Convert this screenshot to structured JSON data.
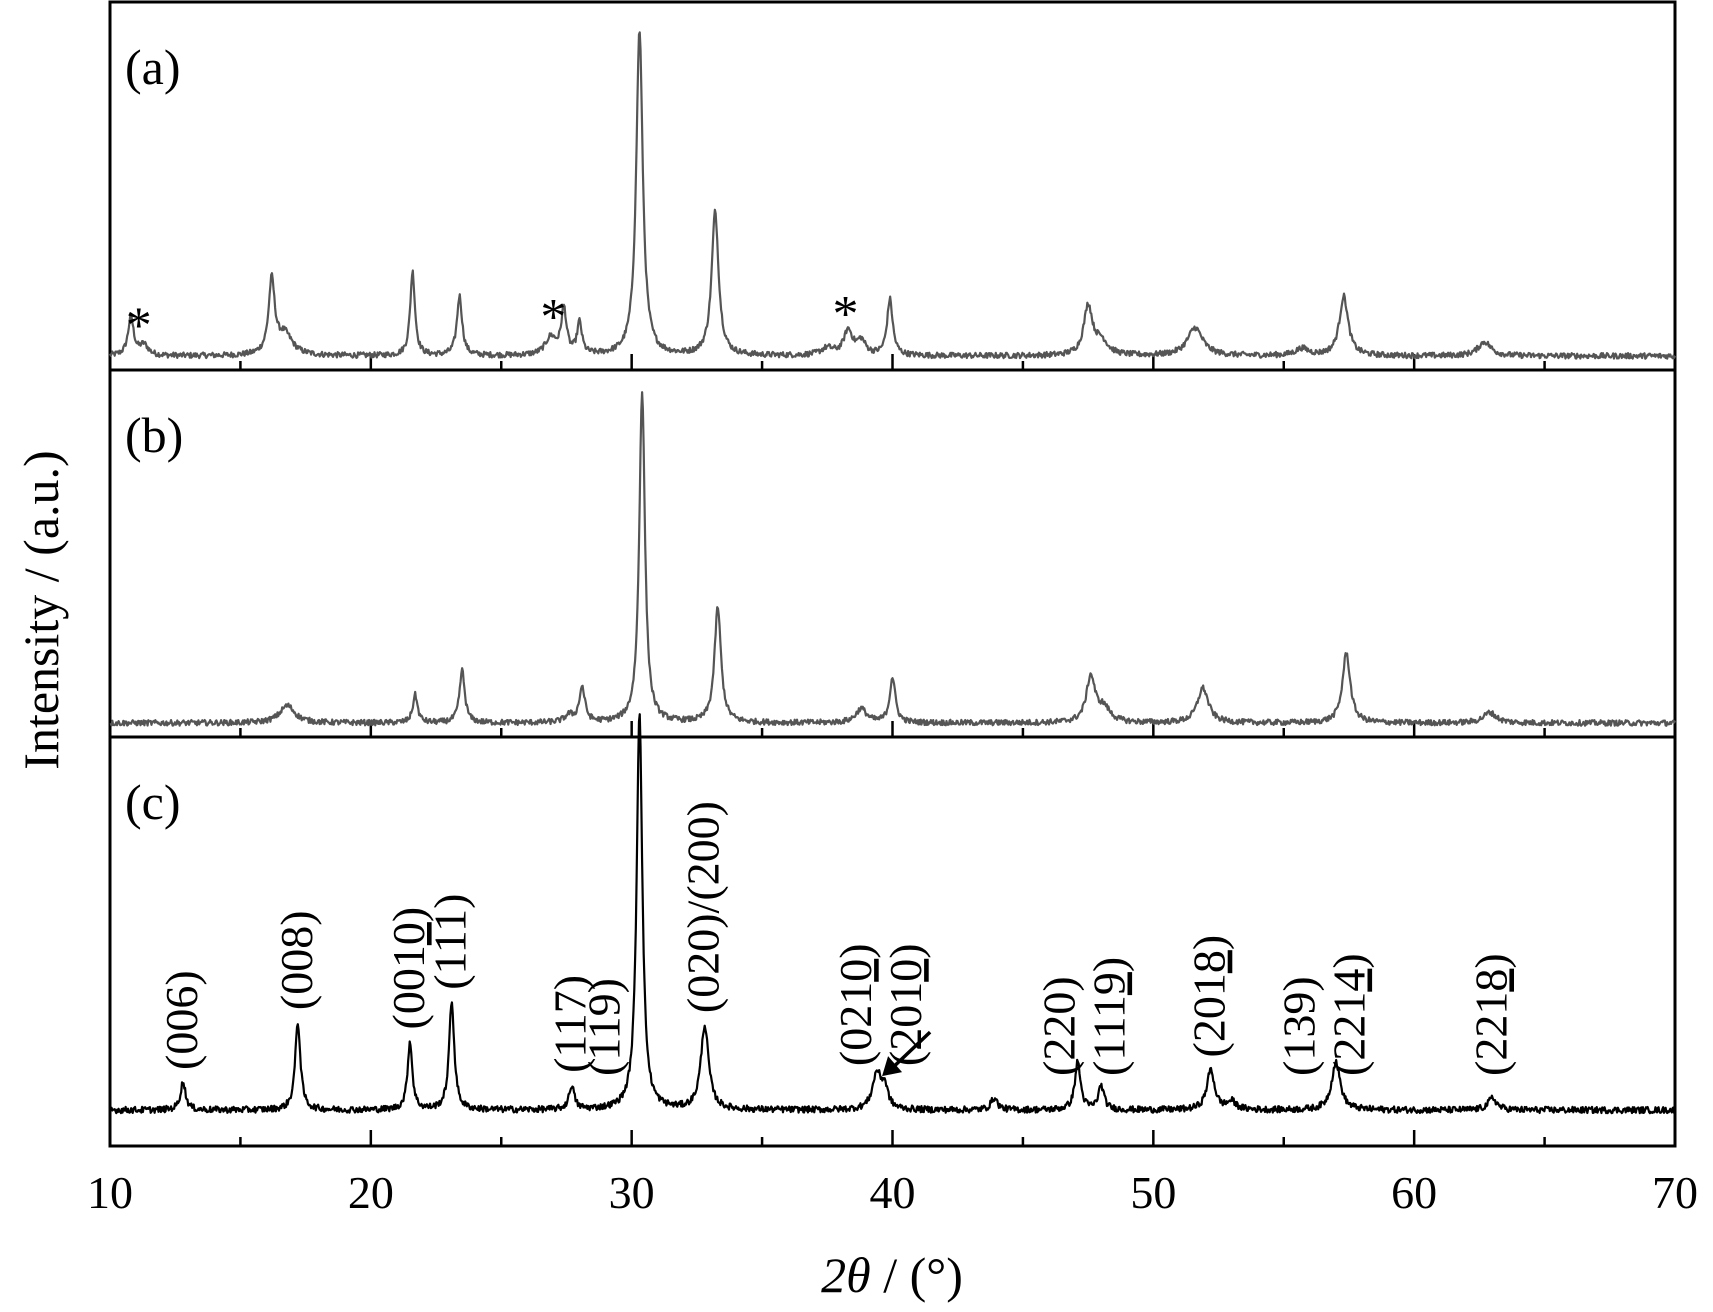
{
  "chart_data": {
    "type": "line",
    "xlabel": {
      "italic_part": "2θ",
      "rest": " / (°)"
    },
    "ylabel": "Intensity / (a.u.)",
    "xlim": [
      10,
      70
    ],
    "x_ticks": [
      10,
      20,
      30,
      40,
      50,
      60,
      70
    ],
    "x_minor_ticks": [
      15,
      25,
      35,
      45,
      55,
      65
    ],
    "panels": [
      {
        "label": "(a)",
        "color": "#555555",
        "baseline": 0.04,
        "peaks": [
          {
            "x": 10.8,
            "h": 0.11,
            "w": 0.13
          },
          {
            "x": 11.3,
            "h": 0.03,
            "w": 0.2
          },
          {
            "x": 16.2,
            "h": 0.21,
            "w": 0.14
          },
          {
            "x": 16.7,
            "h": 0.06,
            "w": 0.35
          },
          {
            "x": 21.6,
            "h": 0.24,
            "w": 0.11
          },
          {
            "x": 23.4,
            "h": 0.17,
            "w": 0.12
          },
          {
            "x": 26.9,
            "h": 0.05,
            "w": 0.25
          },
          {
            "x": 27.4,
            "h": 0.13,
            "w": 0.12
          },
          {
            "x": 28.0,
            "h": 0.09,
            "w": 0.11
          },
          {
            "x": 30.3,
            "h": 0.93,
            "w": 0.15
          },
          {
            "x": 33.2,
            "h": 0.41,
            "w": 0.16
          },
          {
            "x": 37.5,
            "h": 0.02,
            "w": 0.3
          },
          {
            "x": 38.3,
            "h": 0.07,
            "w": 0.2
          },
          {
            "x": 38.8,
            "h": 0.04,
            "w": 0.2
          },
          {
            "x": 39.9,
            "h": 0.16,
            "w": 0.13
          },
          {
            "x": 47.5,
            "h": 0.14,
            "w": 0.2
          },
          {
            "x": 48.0,
            "h": 0.04,
            "w": 0.3
          },
          {
            "x": 51.6,
            "h": 0.08,
            "w": 0.35
          },
          {
            "x": 55.7,
            "h": 0.02,
            "w": 0.3
          },
          {
            "x": 57.3,
            "h": 0.17,
            "w": 0.2
          },
          {
            "x": 62.7,
            "h": 0.04,
            "w": 0.3
          }
        ],
        "markers": [
          {
            "x": 11.1,
            "text": "*"
          },
          {
            "x": 27.0,
            "text": "*"
          },
          {
            "x": 38.2,
            "text": "*"
          }
        ]
      },
      {
        "label": "(b)",
        "color": "#555555",
        "baseline": 0.04,
        "peaks": [
          {
            "x": 16.8,
            "h": 0.05,
            "w": 0.35
          },
          {
            "x": 21.7,
            "h": 0.08,
            "w": 0.11
          },
          {
            "x": 23.5,
            "h": 0.15,
            "w": 0.12
          },
          {
            "x": 27.6,
            "h": 0.02,
            "w": 0.2
          },
          {
            "x": 28.1,
            "h": 0.1,
            "w": 0.13
          },
          {
            "x": 30.4,
            "h": 0.95,
            "w": 0.13
          },
          {
            "x": 33.3,
            "h": 0.33,
            "w": 0.15
          },
          {
            "x": 38.8,
            "h": 0.04,
            "w": 0.25
          },
          {
            "x": 40.0,
            "h": 0.13,
            "w": 0.13
          },
          {
            "x": 47.6,
            "h": 0.13,
            "w": 0.2
          },
          {
            "x": 48.1,
            "h": 0.04,
            "w": 0.3
          },
          {
            "x": 51.9,
            "h": 0.1,
            "w": 0.25
          },
          {
            "x": 57.4,
            "h": 0.2,
            "w": 0.18
          },
          {
            "x": 62.9,
            "h": 0.03,
            "w": 0.3
          }
        ],
        "markers": []
      },
      {
        "label": "(c)",
        "color": "#000000",
        "baseline": 0.09,
        "peaks": [
          {
            "x": 12.8,
            "h": 0.07,
            "w": 0.12
          },
          {
            "x": 17.2,
            "h": 0.22,
            "w": 0.12
          },
          {
            "x": 21.5,
            "h": 0.17,
            "w": 0.11
          },
          {
            "x": 23.1,
            "h": 0.27,
            "w": 0.12
          },
          {
            "x": 27.7,
            "h": 0.06,
            "w": 0.12
          },
          {
            "x": 30.3,
            "h": 1.0,
            "w": 0.13
          },
          {
            "x": 32.8,
            "h": 0.21,
            "w": 0.18
          },
          {
            "x": 39.4,
            "h": 0.09,
            "w": 0.2
          },
          {
            "x": 39.7,
            "h": 0.05,
            "w": 0.15
          },
          {
            "x": 43.9,
            "h": 0.03,
            "w": 0.15
          },
          {
            "x": 47.1,
            "h": 0.12,
            "w": 0.13
          },
          {
            "x": 48.0,
            "h": 0.06,
            "w": 0.13
          },
          {
            "x": 52.2,
            "h": 0.1,
            "w": 0.18
          },
          {
            "x": 53.0,
            "h": 0.02,
            "w": 0.2
          },
          {
            "x": 57.0,
            "h": 0.12,
            "w": 0.2
          },
          {
            "x": 63.0,
            "h": 0.03,
            "w": 0.2
          }
        ],
        "annotations": [
          {
            "x": 12.8,
            "lines": [
              [
                {
                  "t": "(006)"
                }
              ]
            ]
          },
          {
            "x": 17.2,
            "lines": [
              [
                {
                  "t": "(008)"
                }
              ]
            ]
          },
          {
            "x": 21.5,
            "lines": [
              [
                {
                  "t": "(001"
                },
                {
                  "t": "0",
                  "u": true
                },
                {
                  "t": ")"
                }
              ]
            ]
          },
          {
            "x": 23.1,
            "lines": [
              [
                {
                  "t": "(111)"
                }
              ]
            ]
          },
          {
            "x": 27.7,
            "lines": [
              [
                {
                  "t": "(117)"
                }
              ]
            ]
          },
          {
            "x": 29.0,
            "lines": [
              [
                {
                  "t": "(119)"
                }
              ]
            ]
          },
          {
            "x": 32.8,
            "lines": [
              [
                {
                  "t": "(020)/(200)"
                }
              ]
            ]
          },
          {
            "x": 39.6,
            "lines": [
              [
                {
                  "t": "(021"
                },
                {
                  "t": "0",
                  "u": true
                },
                {
                  "t": ")"
                }
              ],
              [
                {
                  "t": "(201"
                },
                {
                  "t": "0",
                  "u": true
                },
                {
                  "t": ")"
                }
              ]
            ]
          },
          {
            "x": 47.4,
            "lines": [
              [
                {
                  "t": "(220)"
                }
              ],
              [
                {
                  "t": "(111"
                },
                {
                  "t": "9",
                  "u": true
                },
                {
                  "t": ")"
                }
              ]
            ]
          },
          {
            "x": 52.2,
            "lines": [
              [
                {
                  "t": "(201"
                },
                {
                  "t": "8",
                  "u": true
                },
                {
                  "t": ")"
                }
              ]
            ]
          },
          {
            "x": 56.6,
            "lines": [
              [
                {
                  "t": "(139)"
                }
              ],
              [
                {
                  "t": "(221"
                },
                {
                  "t": "4",
                  "u": true
                },
                {
                  "t": ")"
                }
              ]
            ]
          },
          {
            "x": 63.0,
            "lines": [
              [
                {
                  "t": "(221"
                },
                {
                  "t": "8",
                  "u": true
                },
                {
                  "t": ")"
                }
              ]
            ]
          }
        ],
        "arrow_to_x": 39.6
      }
    ]
  }
}
